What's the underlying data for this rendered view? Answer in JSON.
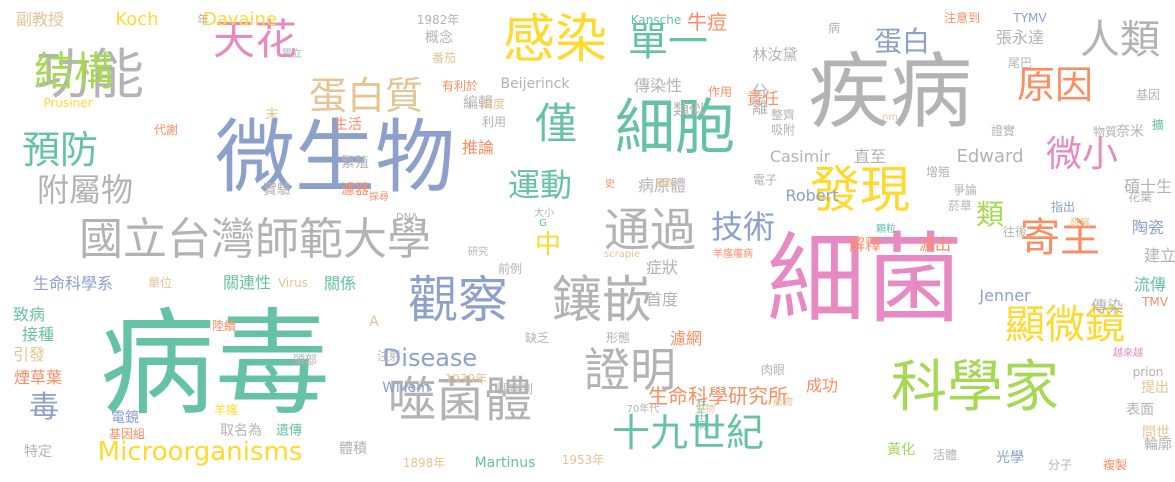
{
  "palette": {
    "green": "#66c2a5",
    "orange": "#fc8d62",
    "blue": "#8da0cb",
    "pink": "#e78ac3",
    "lime": "#a6d854",
    "yellow": "#ffd92f",
    "tan": "#e5c494",
    "gray": "#b3b3b3"
  },
  "words": [
    "病毒",
    "細菌",
    "疾病",
    "微生物",
    "感染",
    "細胞",
    "科學家",
    "國立台灣師範大學",
    "發現",
    "噬菌體",
    "十九世紀",
    "觀察",
    "鑲嵌",
    "天花",
    "功能",
    "人類",
    "單一",
    "結構",
    "僅",
    "通過",
    "原因",
    "寄主",
    "顯微鏡",
    "證明",
    "蛋白質",
    "預防",
    "微小",
    "附屬物",
    "運動",
    "技術",
    "蛋白",
    "類",
    "中",
    "毒",
    "Microorganisms",
    "Disease",
    "生命科學研究所",
    "生命科學系",
    "Koch",
    "Davaine",
    "副教授",
    "概念",
    "牛痘",
    "林汝黛",
    "張永達",
    "傳染性",
    "編輯",
    "責任",
    "類似",
    "分離",
    "推論",
    "生活",
    "繁殖",
    "實驗",
    "濾器",
    "Casimir",
    "直至",
    "Edward",
    "Robert",
    "病原體",
    "碩士生",
    "解釋",
    "濾出",
    "關連性",
    "關係",
    "症狀",
    "首度",
    "Jenner",
    "傳染",
    "建立",
    "流傳",
    "陶瓷",
    "致病",
    "接種",
    "引發",
    "煙草葉",
    "特定",
    "成功",
    "濾網",
    "Willem",
    "1939年",
    "觀察到",
    "Martinus",
    "1953年",
    "1898年",
    "體積",
    "遺傳",
    "取名為",
    "電鏡",
    "基因組",
    "羊瘙",
    "狂牛病",
    "70年代",
    "生物",
    "產物",
    "黃化",
    "活體",
    "光學",
    "分子",
    "複製",
    "輪廓",
    "問世",
    "表面",
    "提出",
    "prion",
    "越來越",
    "肉眼",
    "形態",
    "缺乏",
    "注射",
    "頭部",
    "陸續",
    "單位",
    "Virus",
    "前例",
    "研究",
    "scrapie",
    "羊瘙癢病",
    "大小",
    "DNA",
    "G",
    "探尋",
    "電子",
    "稱為",
    "史",
    "顆粒",
    "往後",
    "菸草",
    "爭論",
    "指出",
    "發展",
    "花葉",
    "奈米",
    "物質",
    "證實",
    "增殖",
    "吸附",
    "整齊",
    "nm",
    "作用",
    "Beijerinck",
    "利用",
    "高度",
    "末",
    "代謝",
    "Prusiner",
    "獨立",
    "番茄",
    "有利於",
    "1982年",
    "年",
    "Kansche",
    "病",
    "注意到",
    "TYMV",
    "尾巴",
    "基因",
    "擴",
    "TMV",
    "A"
  ]
}
